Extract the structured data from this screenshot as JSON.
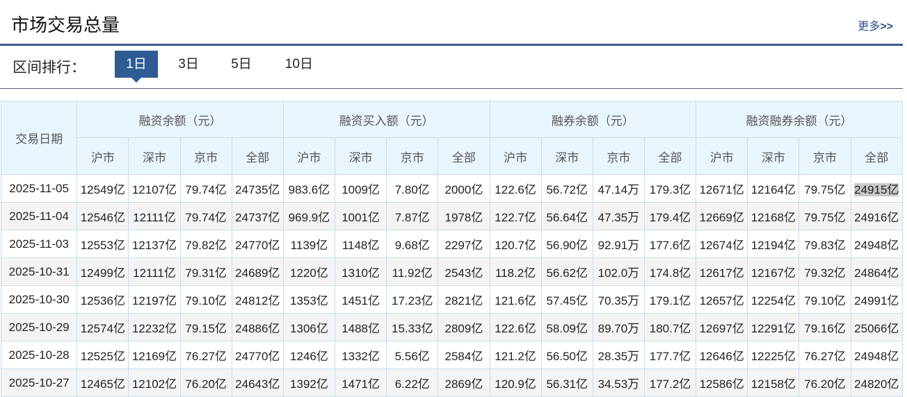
{
  "header": {
    "title": "市场交易总量",
    "more_label": "更多",
    "more_arrows": ">>"
  },
  "tabs": {
    "label": "区间排行：",
    "items": [
      {
        "label": "1日",
        "active": true
      },
      {
        "label": "3日"
      },
      {
        "label": "5日"
      },
      {
        "label": "10日"
      }
    ]
  },
  "table": {
    "date_header": "交易日期",
    "groups": [
      "融资余额（元）",
      "融资买入额（元）",
      "融券余额（元）",
      "融资融券余额（元）"
    ],
    "subheaders": [
      "沪市",
      "深市",
      "京市",
      "全部"
    ],
    "rows": [
      [
        "2025-11-05",
        "12549亿",
        "12107亿",
        "79.74亿",
        "24735亿",
        "983.6亿",
        "1009亿",
        "7.80亿",
        "2000亿",
        "122.6亿",
        "56.72亿",
        "47.14万",
        "179.3亿",
        "12671亿",
        "12164亿",
        "79.75亿",
        "24915亿"
      ],
      [
        "2025-11-04",
        "12546亿",
        "12111亿",
        "79.74亿",
        "24737亿",
        "969.9亿",
        "1001亿",
        "7.87亿",
        "1978亿",
        "122.7亿",
        "56.64亿",
        "47.35万",
        "179.4亿",
        "12669亿",
        "12168亿",
        "79.75亿",
        "24916亿"
      ],
      [
        "2025-11-03",
        "12553亿",
        "12137亿",
        "79.82亿",
        "24770亿",
        "1139亿",
        "1148亿",
        "9.68亿",
        "2297亿",
        "120.7亿",
        "56.90亿",
        "92.91万",
        "177.6亿",
        "12674亿",
        "12194亿",
        "79.83亿",
        "24948亿"
      ],
      [
        "2025-10-31",
        "12499亿",
        "12111亿",
        "79.31亿",
        "24689亿",
        "1220亿",
        "1310亿",
        "11.92亿",
        "2543亿",
        "118.2亿",
        "56.62亿",
        "102.0万",
        "174.8亿",
        "12617亿",
        "12167亿",
        "79.32亿",
        "24864亿"
      ],
      [
        "2025-10-30",
        "12536亿",
        "12197亿",
        "79.10亿",
        "24812亿",
        "1353亿",
        "1451亿",
        "17.23亿",
        "2821亿",
        "121.6亿",
        "57.45亿",
        "70.35万",
        "179.1亿",
        "12657亿",
        "12254亿",
        "79.10亿",
        "24991亿"
      ],
      [
        "2025-10-29",
        "12574亿",
        "12232亿",
        "79.15亿",
        "24886亿",
        "1306亿",
        "1488亿",
        "15.33亿",
        "2809亿",
        "122.6亿",
        "58.09亿",
        "89.70万",
        "180.7亿",
        "12697亿",
        "12291亿",
        "79.16亿",
        "25066亿"
      ],
      [
        "2025-10-28",
        "12525亿",
        "12169亿",
        "76.27亿",
        "24770亿",
        "1246亿",
        "1332亿",
        "5.56亿",
        "2584亿",
        "121.2亿",
        "56.50亿",
        "28.35万",
        "177.7亿",
        "12646亿",
        "12225亿",
        "76.27亿",
        "24948亿"
      ],
      [
        "2025-10-27",
        "12465亿",
        "12102亿",
        "76.20亿",
        "24643亿",
        "1392亿",
        "1471亿",
        "6.22亿",
        "2869亿",
        "120.9亿",
        "56.31亿",
        "34.53万",
        "177.2亿",
        "12586亿",
        "12158亿",
        "76.20亿",
        "24820亿"
      ]
    ]
  },
  "colors": {
    "accent": "#2f5b93",
    "header_bg": "#e9f5fd",
    "border": "#c7dceb"
  }
}
